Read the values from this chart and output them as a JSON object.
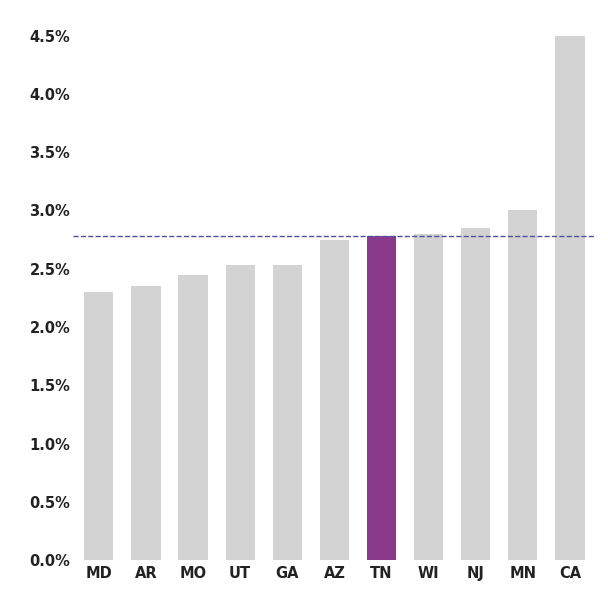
{
  "categories": [
    "MD",
    "AR",
    "MO",
    "UT",
    "GA",
    "AZ",
    "TN",
    "WI",
    "NJ",
    "MN",
    "CA"
  ],
  "values": [
    0.023,
    0.0235,
    0.0245,
    0.0253,
    0.0253,
    0.0275,
    0.0278,
    0.028,
    0.0285,
    0.03,
    0.045
  ],
  "bar_colors": [
    "#d3d3d3",
    "#d3d3d3",
    "#d3d3d3",
    "#d3d3d3",
    "#d3d3d3",
    "#d3d3d3",
    "#8b3a8b",
    "#d3d3d3",
    "#d3d3d3",
    "#d3d3d3",
    "#d3d3d3"
  ],
  "dashed_line_value": 0.0278,
  "dashed_line_color": "#5050a0",
  "ylim": [
    0.0,
    0.047
  ],
  "yticks": [
    0.0,
    0.005,
    0.01,
    0.015,
    0.02,
    0.025,
    0.03,
    0.035,
    0.04,
    0.045
  ],
  "background_color": "#ffffff",
  "bar_width": 0.62,
  "tick_label_fontsize": 10.5,
  "ytick_label_fontsize": 10.5
}
